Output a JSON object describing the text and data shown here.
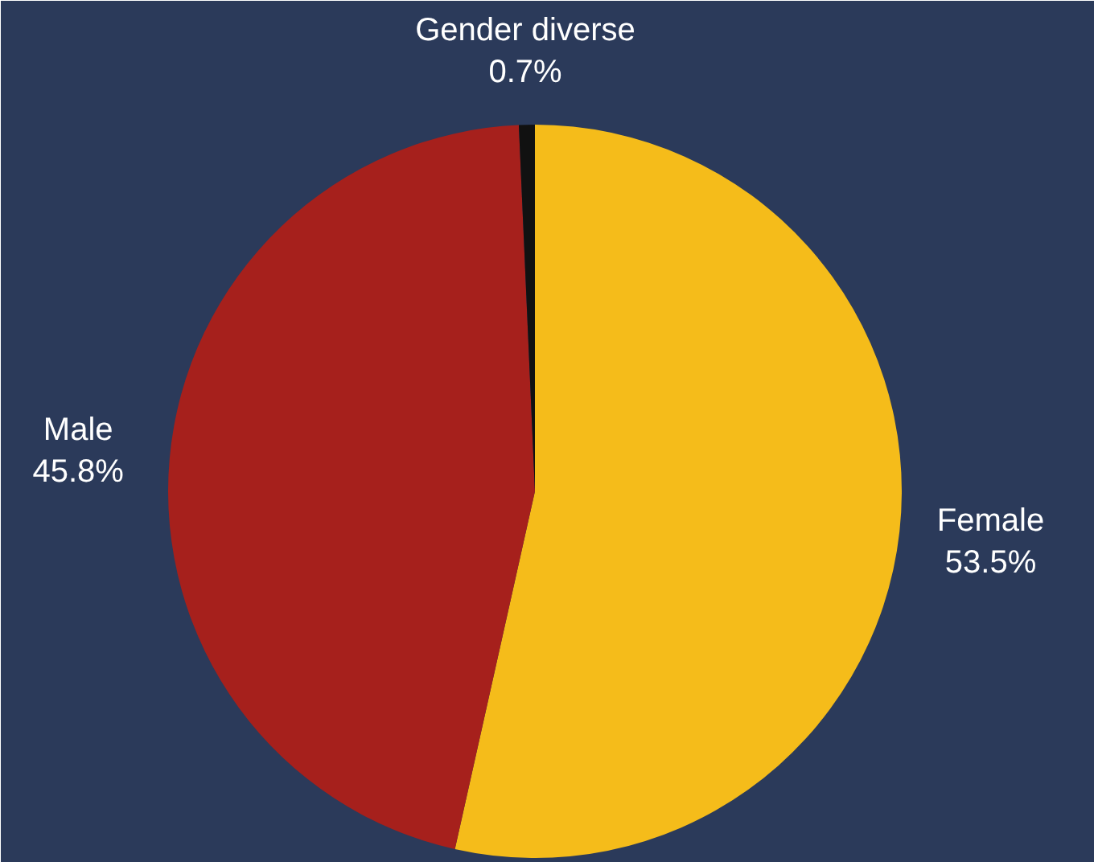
{
  "chart_data": {
    "type": "pie",
    "categories": [
      "Female",
      "Male",
      "Gender diverse"
    ],
    "values": [
      53.5,
      45.8,
      0.7
    ],
    "colors": [
      "#f5bc1a",
      "#a6201c",
      "#111111"
    ],
    "value_labels": [
      "53.5%",
      "45.8%",
      "0.7%"
    ]
  }
}
